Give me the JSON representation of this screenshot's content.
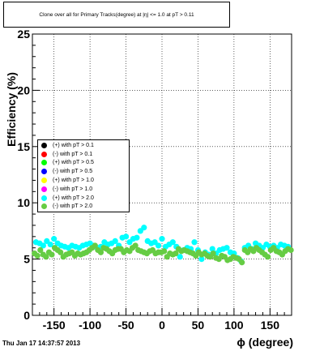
{
  "chart_data": {
    "type": "scatter",
    "title": "Clone  over all for Primary Tracks(degree) at |η| <= 1.0 at pT > 0.11",
    "xlabel": "ϕ (degree)",
    "ylabel": "Efficiency (%)",
    "xlim": [
      -180,
      180
    ],
    "ylim": [
      0,
      25
    ],
    "x_ticks": [
      "-150",
      "-100",
      "-50",
      "0",
      "50",
      "100",
      "150"
    ],
    "y_ticks": [
      "0",
      "5",
      "10",
      "15",
      "20",
      "25"
    ],
    "grid": true,
    "legend_position": "left-center",
    "timestamp": "Thu Jan 17 14:37:57 2013",
    "series": [
      {
        "name": "(+) with pT > 0.1",
        "color": "#000000",
        "x": [],
        "y": []
      },
      {
        "name": "(-) with pT > 0.1",
        "color": "#ff0000",
        "x": [],
        "y": []
      },
      {
        "name": "(+) with pT > 0.5",
        "color": "#00ff00",
        "x": [],
        "y": []
      },
      {
        "name": "(-) with pT > 0.5",
        "color": "#0000ff",
        "x": [],
        "y": []
      },
      {
        "name": "(+) with pT > 1.0",
        "color": "#ffff00",
        "x": [],
        "y": []
      },
      {
        "name": "(-) with pT > 1.0",
        "color": "#ff00ff",
        "x": [],
        "y": []
      },
      {
        "name": "(+) with pT > 2.0",
        "color": "#00ffff",
        "x": [
          -175,
          -170,
          -165,
          -160,
          -155,
          -150,
          -145,
          -140,
          -135,
          -130,
          -125,
          -120,
          -115,
          -110,
          -105,
          -100,
          -95,
          -90,
          -85,
          -80,
          -75,
          -70,
          -65,
          -60,
          -55,
          -50,
          -45,
          -40,
          -35,
          -30,
          -25,
          -20,
          -15,
          -10,
          -5,
          0,
          5,
          10,
          15,
          20,
          25,
          30,
          35,
          40,
          45,
          50,
          55,
          60,
          65,
          70,
          75,
          80,
          85,
          90,
          95,
          100,
          105,
          110,
          115,
          120,
          125,
          130,
          135,
          140,
          145,
          150,
          155,
          160,
          165,
          170,
          175
        ],
        "y": [
          6.5,
          6.4,
          6.2,
          6.6,
          6.3,
          6.8,
          6.4,
          6.2,
          6.1,
          6.0,
          6.2,
          6.1,
          6.0,
          6.2,
          6.3,
          6.4,
          6.2,
          6.0,
          6.1,
          6.5,
          6.3,
          6.4,
          6.6,
          6.2,
          6.9,
          7.0,
          6.5,
          6.8,
          6.9,
          7.5,
          7.8,
          6.6,
          6.4,
          6.5,
          6.2,
          6.8,
          6.1,
          6.3,
          6.5,
          6.1,
          5.2,
          5.8,
          6.0,
          5.9,
          6.5,
          5.8,
          5.0,
          5.6,
          5.4,
          5.9,
          5.5,
          5.8,
          5.9,
          6.0,
          5.6,
          5.5,
          5.1,
          4.8,
          6.0,
          6.2,
          5.9,
          6.4,
          6.2,
          6.0,
          6.3,
          6.1,
          6.2,
          6.0,
          6.3,
          6.2,
          6.1
        ]
      },
      {
        "name": "(-) with pT > 2.0",
        "color": "#66cc44",
        "x": [
          -177,
          -173,
          -169,
          -165,
          -161,
          -157,
          -153,
          -149,
          -145,
          -141,
          -137,
          -133,
          -129,
          -125,
          -121,
          -117,
          -113,
          -109,
          -105,
          -101,
          -97,
          -93,
          -89,
          -85,
          -81,
          -77,
          -73,
          -69,
          -65,
          -61,
          -57,
          -53,
          -49,
          -45,
          -41,
          -37,
          -33,
          -29,
          -25,
          -21,
          -17,
          -13,
          -9,
          -5,
          -1,
          3,
          7,
          11,
          15,
          19,
          23,
          27,
          31,
          35,
          39,
          43,
          47,
          51,
          55,
          59,
          63,
          67,
          71,
          75,
          79,
          83,
          87,
          91,
          95,
          99,
          103,
          107,
          111,
          115,
          119,
          123,
          127,
          131,
          135,
          139,
          143,
          147,
          151,
          155,
          159,
          163,
          167,
          171,
          175,
          179
        ],
        "y": [
          5.5,
          5.3,
          5.8,
          5.4,
          5.2,
          5.6,
          5.4,
          6.0,
          5.8,
          5.6,
          5.2,
          5.4,
          5.5,
          5.6,
          5.3,
          5.5,
          5.4,
          5.5,
          5.6,
          5.8,
          6.0,
          6.2,
          5.8,
          5.6,
          6.0,
          5.9,
          5.7,
          5.5,
          5.8,
          5.9,
          5.9,
          5.6,
          5.8,
          5.7,
          6.0,
          6.2,
          5.8,
          5.7,
          5.6,
          5.5,
          5.7,
          5.8,
          5.5,
          5.6,
          5.6,
          5.7,
          5.2,
          5.5,
          5.4,
          5.5,
          5.9,
          5.7,
          5.8,
          5.7,
          5.6,
          5.5,
          5.3,
          5.6,
          5.4,
          5.5,
          5.3,
          5.2,
          5.5,
          5.1,
          5.0,
          5.3,
          5.2,
          4.9,
          5.0,
          5.2,
          5.1,
          5.0,
          4.7,
          5.8,
          5.6,
          5.9,
          5.7,
          6.0,
          5.8,
          5.6,
          5.4,
          5.2,
          5.8,
          6.0,
          5.7,
          5.6,
          5.4,
          5.7,
          5.9,
          5.8
        ]
      }
    ]
  }
}
